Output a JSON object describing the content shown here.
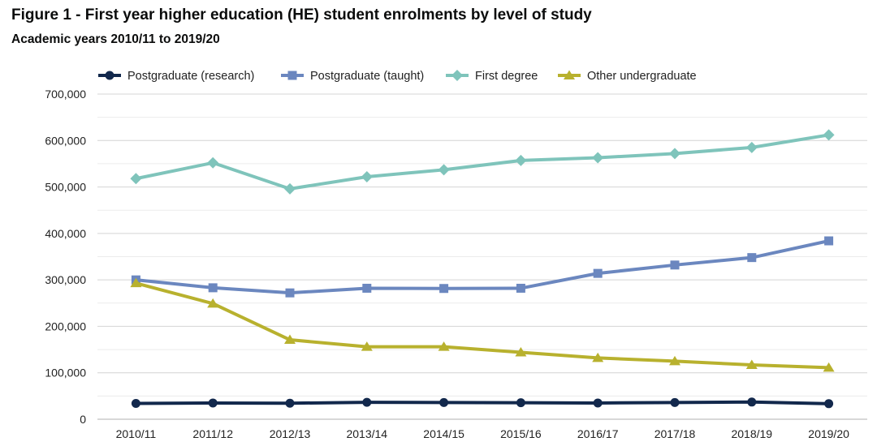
{
  "header": {
    "title": "Figure 1 - First year higher education (HE) student enrolments by level of study",
    "subtitle": "Academic years 2010/11 to 2019/20"
  },
  "chart_data": {
    "type": "line",
    "title": "Figure 1 - First year higher education (HE) student enrolments by level of study",
    "subtitle": "Academic years 2010/11 to 2019/20",
    "xlabel": "",
    "ylabel": "",
    "categories": [
      "2010/11",
      "2011/12",
      "2012/13",
      "2013/14",
      "2014/15",
      "2015/16",
      "2016/17",
      "2017/18",
      "2018/19",
      "2019/20"
    ],
    "ylim": [
      0,
      700000
    ],
    "yticks": [
      0,
      100000,
      200000,
      300000,
      400000,
      500000,
      600000,
      700000
    ],
    "ytick_labels": [
      "0",
      "100,000",
      "200,000",
      "300,000",
      "400,000",
      "500,000",
      "600,000",
      "700,000"
    ],
    "grid": true,
    "legend_position": "top",
    "series": [
      {
        "name": "Postgraduate (research)",
        "marker": "circle",
        "color": "#12284c",
        "values": [
          34000,
          35000,
          34500,
          36500,
          36000,
          35500,
          35000,
          36000,
          37000,
          33500
        ]
      },
      {
        "name": "Postgraduate (taught)",
        "marker": "square",
        "color": "#6b87bf",
        "values": [
          300000,
          283000,
          272000,
          282000,
          281500,
          282000,
          314000,
          332000,
          348000,
          384000
        ]
      },
      {
        "name": "First degree",
        "marker": "diamond",
        "color": "#7fc4bb",
        "values": [
          518000,
          552000,
          496000,
          522000,
          537000,
          557000,
          563000,
          572000,
          585000,
          612000
        ]
      },
      {
        "name": "Other undergraduate",
        "marker": "triangle",
        "color": "#b8b12e",
        "values": [
          293000,
          249000,
          171000,
          156000,
          156000,
          144000,
          132000,
          125000,
          117000,
          111000
        ]
      }
    ]
  }
}
